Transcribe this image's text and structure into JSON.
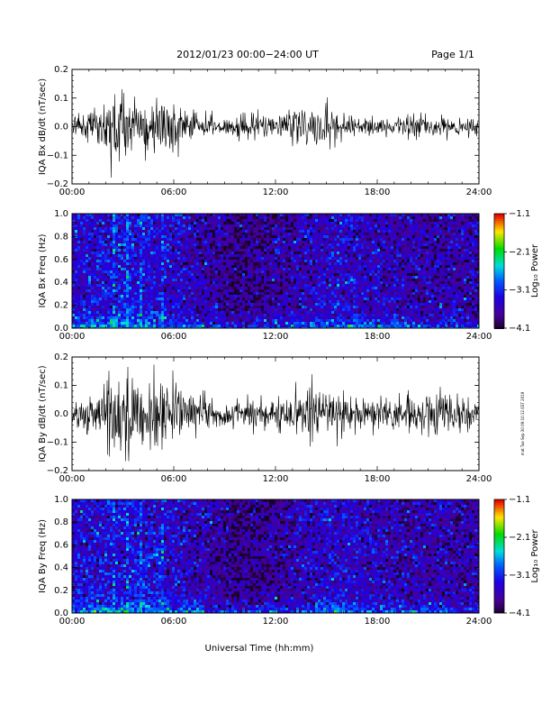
{
  "header": {
    "title": "2012/01/23  00:00−24:00 UT",
    "page_label": "Page 1/1"
  },
  "footer": {
    "side_note": "mat Tue Sep 30 09:10:12 EST 2019"
  },
  "chart_data": [
    {
      "type": "line",
      "panel": "waveform",
      "ylabel": "IQA Bx dB/dt (nT/sec)",
      "ylim": [
        -0.2,
        0.2
      ],
      "yticks": [
        -0.2,
        -0.1,
        0.0,
        0.1,
        0.2
      ],
      "ytick_labels": [
        "−0.2",
        "−0.1",
        "0.0",
        "0.1",
        "0.2"
      ],
      "xlim": [
        0,
        24
      ],
      "xtick_labels": [
        "00:00",
        "06:00",
        "12:00",
        "18:00",
        "24:00"
      ],
      "series": [
        {
          "x": [
            0,
            1,
            2,
            2.5,
            3,
            4,
            5,
            6,
            7,
            8,
            9,
            10,
            11,
            12,
            13,
            14,
            15,
            16,
            17,
            18,
            19,
            20,
            21,
            22,
            23,
            24
          ],
          "y_envelope": [
            0.04,
            0.07,
            0.2,
            0.2,
            0.2,
            0.09,
            0.2,
            0.12,
            0.08,
            0.07,
            0.04,
            0.07,
            0.06,
            0.05,
            0.08,
            0.09,
            0.12,
            0.06,
            0.04,
            0.05,
            0.04,
            0.05,
            0.05,
            0.05,
            0.04,
            0.04
          ],
          "y_rms": [
            0.02,
            0.03,
            0.06,
            0.09,
            0.09,
            0.04,
            0.06,
            0.05,
            0.03,
            0.03,
            0.02,
            0.03,
            0.025,
            0.02,
            0.03,
            0.035,
            0.045,
            0.03,
            0.02,
            0.02,
            0.018,
            0.025,
            0.025,
            0.022,
            0.02,
            0.02
          ]
        }
      ]
    },
    {
      "type": "heatmap",
      "panel": "spectrogram",
      "ylabel": "IQA Bx Freq (Hz)",
      "ylim": [
        0.0,
        1.0
      ],
      "yticks": [
        0.0,
        0.2,
        0.4,
        0.6,
        0.8,
        1.0
      ],
      "ytick_labels": [
        "0.0",
        "0.2",
        "0.4",
        "0.6",
        "0.8",
        "1.0"
      ],
      "xlim": [
        0,
        24
      ],
      "xtick_labels": [
        "00:00",
        "06:00",
        "12:00",
        "18:00",
        "24:00"
      ],
      "colorbar": {
        "label": "Log₁₀ Power",
        "range": [
          -4.1,
          -1.1
        ],
        "ticks": [
          -1.1,
          -2.1,
          -3.1,
          -4.1
        ],
        "tick_labels": [
          "−1.1",
          "−2.1",
          "−3.1",
          "−4.1"
        ]
      },
      "values": {
        "hours": [
          0,
          2,
          4,
          6,
          8,
          10,
          12,
          14,
          16,
          18,
          20,
          22,
          24
        ],
        "low_freq_power": [
          -2.7,
          -2.5,
          -2.6,
          -2.7,
          -2.9,
          -3.0,
          -2.9,
          -2.7,
          -2.5,
          -2.6,
          -2.8,
          -2.9,
          -2.9
        ],
        "background_power": [
          -3.4,
          -3.3,
          -3.3,
          -3.4,
          -3.6,
          -3.8,
          -3.7,
          -3.5,
          -3.4,
          -3.5,
          -3.6,
          -3.6,
          -3.6
        ]
      }
    },
    {
      "type": "line",
      "panel": "waveform",
      "ylabel": "IQA By dB/dt (nT/sec)",
      "ylim": [
        -0.2,
        0.2
      ],
      "yticks": [
        -0.2,
        -0.1,
        0.0,
        0.1,
        0.2
      ],
      "ytick_labels": [
        "−0.2",
        "−0.1",
        "0.0",
        "0.1",
        "0.2"
      ],
      "xlim": [
        0,
        24
      ],
      "xtick_labels": [
        "00:00",
        "06:00",
        "12:00",
        "18:00",
        "24:00"
      ],
      "series": [
        {
          "x": [
            0,
            1,
            2,
            2.5,
            3,
            4,
            5,
            6,
            7,
            8,
            9,
            10,
            11,
            12,
            13,
            14,
            15,
            16,
            17,
            18,
            19,
            20,
            21,
            22,
            23,
            24
          ],
          "y_envelope": [
            0.06,
            0.1,
            0.2,
            0.2,
            0.2,
            0.12,
            0.2,
            0.15,
            0.09,
            0.08,
            0.06,
            0.08,
            0.07,
            0.07,
            0.12,
            0.14,
            0.16,
            0.1,
            0.08,
            0.09,
            0.07,
            0.09,
            0.1,
            0.1,
            0.09,
            0.07
          ],
          "y_rms": [
            0.03,
            0.04,
            0.07,
            0.1,
            0.1,
            0.05,
            0.07,
            0.06,
            0.04,
            0.035,
            0.03,
            0.035,
            0.03,
            0.03,
            0.045,
            0.05,
            0.055,
            0.04,
            0.03,
            0.035,
            0.03,
            0.035,
            0.04,
            0.04,
            0.035,
            0.03
          ]
        }
      ]
    },
    {
      "type": "heatmap",
      "panel": "spectrogram",
      "ylabel": "IQA By Freq (Hz)",
      "ylim": [
        0.0,
        1.0
      ],
      "yticks": [
        0.0,
        0.2,
        0.4,
        0.6,
        0.8,
        1.0
      ],
      "ytick_labels": [
        "0.0",
        "0.2",
        "0.4",
        "0.6",
        "0.8",
        "1.0"
      ],
      "xlim": [
        0,
        24
      ],
      "xtick_labels": [
        "00:00",
        "06:00",
        "12:00",
        "18:00",
        "24:00"
      ],
      "xlabel": "Universal Time (hh:mm)",
      "colorbar": {
        "label": "Log₁₀ Power",
        "range": [
          -4.1,
          -1.1
        ],
        "ticks": [
          -1.1,
          -2.1,
          -3.1,
          -4.1
        ],
        "tick_labels": [
          "−1.1",
          "−2.1",
          "−3.1",
          "−4.1"
        ]
      },
      "values": {
        "hours": [
          0,
          2,
          4,
          6,
          8,
          10,
          12,
          14,
          16,
          18,
          20,
          22,
          24
        ],
        "low_freq_power": [
          -2.6,
          -2.4,
          -2.5,
          -2.6,
          -2.9,
          -3.0,
          -2.9,
          -2.7,
          -2.6,
          -2.7,
          -2.8,
          -2.8,
          -2.9
        ],
        "background_power": [
          -3.4,
          -3.3,
          -3.3,
          -3.4,
          -3.6,
          -3.8,
          -3.7,
          -3.5,
          -3.4,
          -3.5,
          -3.6,
          -3.6,
          -3.6
        ]
      }
    }
  ]
}
